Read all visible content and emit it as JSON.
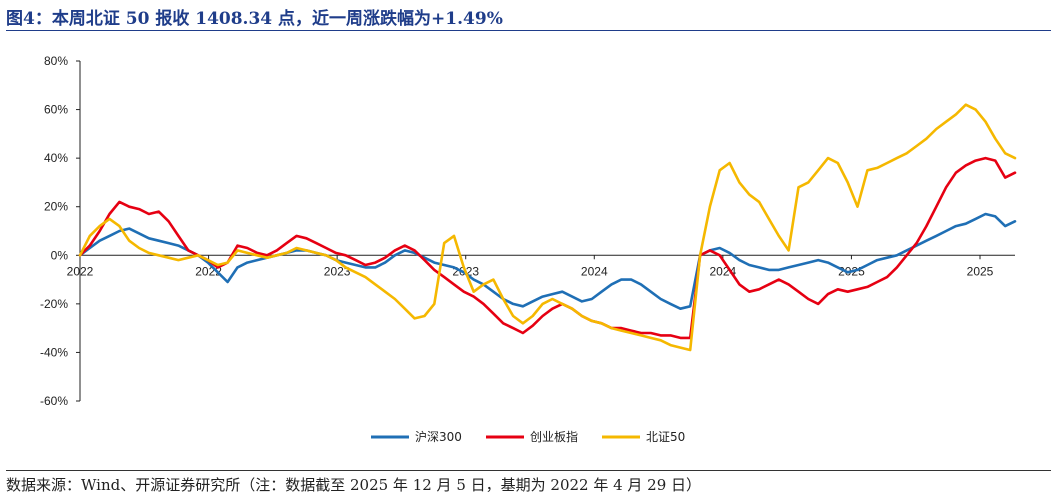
{
  "title": "图4：本周北证 50 报收 1408.34 点，近一周涨跌幅为+1.49%",
  "source": "数据来源：Wind、开源证券研究所（注：数据截至 2025 年 12 月 5 日，基期为 2022 年 4 月 29 日）",
  "colors": {
    "title": "#1f3d8a",
    "s1": "#1f6fb5",
    "s2": "#e60012",
    "s3": "#f5b800"
  },
  "chart_data": {
    "type": "line",
    "ylim": [
      -60,
      80
    ],
    "yticks": [
      -60,
      -40,
      -20,
      0,
      20,
      40,
      60,
      80
    ],
    "ytick_labels": [
      "-60%",
      "-40%",
      "-20%",
      "0%",
      "20%",
      "40%",
      "60%",
      "80%"
    ],
    "xtick_labels": [
      "2022",
      "2022",
      "2023",
      "2023",
      "2024",
      "2024",
      "2025",
      "2025"
    ],
    "grid": false,
    "legend_position": "bottom",
    "series": [
      {
        "name": "沪深300",
        "color": "#1f6fb5",
        "values": [
          0,
          3,
          6,
          8,
          10,
          11,
          9,
          7,
          6,
          5,
          4,
          2,
          0,
          -3,
          -7,
          -11,
          -5,
          -3,
          -2,
          -1,
          0,
          1,
          2,
          2,
          1,
          0,
          -2,
          -3,
          -4,
          -5,
          -5,
          -3,
          0,
          2,
          1,
          -1,
          -3,
          -4,
          -5,
          -7,
          -10,
          -12,
          -15,
          -18,
          -20,
          -21,
          -19,
          -17,
          -16,
          -15,
          -17,
          -19,
          -18,
          -15,
          -12,
          -10,
          -10,
          -12,
          -15,
          -18,
          -20,
          -22,
          -21,
          0,
          2,
          3,
          1,
          -2,
          -4,
          -5,
          -6,
          -6,
          -5,
          -4,
          -3,
          -2,
          -3,
          -5,
          -7,
          -6,
          -4,
          -2,
          -1,
          0,
          2,
          4,
          6,
          8,
          10,
          12,
          13,
          15,
          17,
          16,
          12,
          14
        ]
      },
      {
        "name": "创业板指",
        "color": "#e60012",
        "values": [
          0,
          4,
          10,
          17,
          22,
          20,
          19,
          17,
          18,
          14,
          8,
          2,
          0,
          -2,
          -5,
          -3,
          4,
          3,
          1,
          0,
          2,
          5,
          8,
          7,
          5,
          3,
          1,
          0,
          -2,
          -4,
          -3,
          -1,
          2,
          4,
          2,
          -2,
          -6,
          -9,
          -12,
          -15,
          -17,
          -20,
          -24,
          -28,
          -30,
          -32,
          -29,
          -25,
          -22,
          -20,
          -22,
          -25,
          -27,
          -28,
          -30,
          -30,
          -31,
          -32,
          -32,
          -33,
          -33,
          -34,
          -34,
          0,
          2,
          0,
          -6,
          -12,
          -15,
          -14,
          -12,
          -10,
          -12,
          -15,
          -18,
          -20,
          -16,
          -14,
          -15,
          -14,
          -13,
          -11,
          -9,
          -5,
          0,
          5,
          12,
          20,
          28,
          34,
          37,
          39,
          40,
          39,
          32,
          34
        ]
      },
      {
        "name": "北证50",
        "color": "#f5b800",
        "values": [
          0,
          8,
          12,
          15,
          12,
          6,
          3,
          1,
          0,
          -1,
          -2,
          -1,
          0,
          -2,
          -4,
          -3,
          2,
          1,
          0,
          -1,
          0,
          1,
          3,
          2,
          1,
          0,
          -2,
          -5,
          -7,
          -9,
          -12,
          -15,
          -18,
          -22,
          -26,
          -25,
          -20,
          5,
          8,
          -5,
          -15,
          -12,
          -10,
          -18,
          -25,
          -28,
          -25,
          -20,
          -18,
          -20,
          -22,
          -25,
          -27,
          -28,
          -30,
          -31,
          -32,
          -33,
          -34,
          -35,
          -37,
          -38,
          -39,
          0,
          20,
          35,
          38,
          30,
          25,
          22,
          15,
          8,
          2,
          28,
          30,
          35,
          40,
          38,
          30,
          20,
          35,
          36,
          38,
          40,
          42,
          45,
          48,
          52,
          55,
          58,
          62,
          60,
          55,
          48,
          42,
          40
        ]
      }
    ]
  }
}
